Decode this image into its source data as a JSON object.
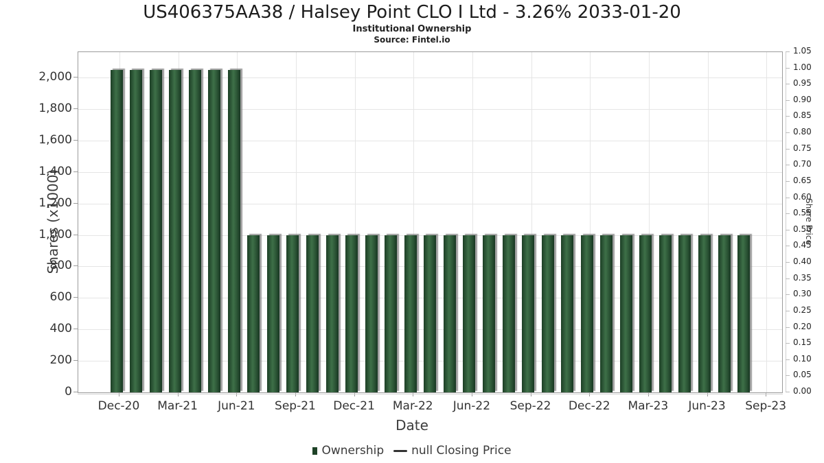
{
  "chart_data": {
    "type": "bar",
    "title": "US406375AA38 / Halsey Point CLO I Ltd - 3.26% 2033-01-20",
    "subtitle": "Institutional Ownership",
    "source": "Source: Fintel.io",
    "xlabel": "Date",
    "ylabel_left": "Shares (x1000)",
    "ylabel_right": "Share Price",
    "categories": [
      "Dec-20",
      "Jan-21",
      "Feb-21",
      "Mar-21",
      "Apr-21",
      "May-21",
      "Jun-21",
      "Jul-21",
      "Aug-21",
      "Sep-21",
      "Oct-21",
      "Nov-21",
      "Dec-21",
      "Jan-22",
      "Feb-22",
      "Mar-22",
      "Apr-22",
      "May-22",
      "Jun-22",
      "Jul-22",
      "Aug-22",
      "Sep-22",
      "Oct-22",
      "Nov-22",
      "Dec-22",
      "Jan-23",
      "Feb-23",
      "Mar-23",
      "Apr-23",
      "May-23",
      "Jun-23",
      "Jul-23",
      "Aug-23"
    ],
    "values": [
      2050,
      2050,
      2050,
      2050,
      2050,
      2050,
      2050,
      1000,
      1000,
      1000,
      1000,
      1000,
      1000,
      1000,
      1000,
      1000,
      1000,
      1000,
      1000,
      1000,
      1000,
      1000,
      1000,
      1000,
      1000,
      1000,
      1000,
      1000,
      1000,
      1000,
      1000,
      1000,
      1000
    ],
    "series": [
      {
        "name": "Ownership",
        "type": "bar",
        "color": "#1e4227"
      },
      {
        "name": "null Closing Price",
        "type": "line",
        "color": "#333333",
        "values_shown": false
      }
    ],
    "x_tick_labels": [
      "Dec-20",
      "Mar-21",
      "Jun-21",
      "Sep-21",
      "Dec-21",
      "Mar-22",
      "Jun-22",
      "Sep-22",
      "Dec-22",
      "Mar-23",
      "Jun-23",
      "Sep-23"
    ],
    "y_left_ticks": [
      "0",
      "200",
      "400",
      "600",
      "800",
      "1,000",
      "1,200",
      "1,400",
      "1,600",
      "1,800",
      "2,000"
    ],
    "y_right_ticks": [
      "0.00",
      "0.05",
      "0.10",
      "0.15",
      "0.20",
      "0.25",
      "0.30",
      "0.35",
      "0.40",
      "0.45",
      "0.50",
      "0.55",
      "0.60",
      "0.65",
      "0.70",
      "0.75",
      "0.80",
      "0.85",
      "0.90",
      "0.95",
      "1.00",
      "1.05"
    ],
    "ylim_left": [
      0,
      2160
    ],
    "ylim_right": [
      0,
      1.05
    ],
    "grid": "on",
    "legend_position": "bottom-center",
    "legend": [
      {
        "label": "Ownership",
        "marker": "square",
        "color": "#1e4227"
      },
      {
        "label": "null Closing Price",
        "marker": "line",
        "color": "#333333"
      }
    ],
    "colors": {
      "bar_edge": "#1d3f26",
      "bar_highlight": "#3e7048",
      "bar_shadow": "#a9a9a9",
      "gridline": "#e5e5e5",
      "plot_border": "#9b9b9b",
      "axis_light": "#cfcfcf",
      "text_dark": "#1c1c1c",
      "text_tick": "#333333"
    }
  }
}
